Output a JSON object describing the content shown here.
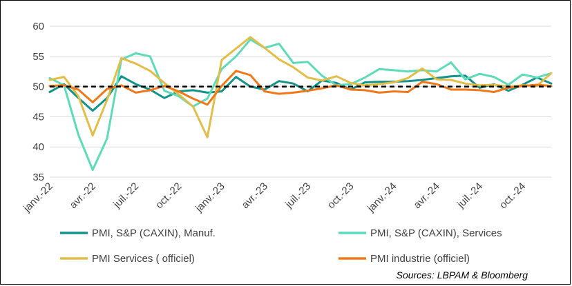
{
  "chart_data": {
    "type": "line",
    "title": "",
    "xlabel": "",
    "ylabel": "",
    "ylim": [
      35,
      60
    ],
    "yticks": [
      "60",
      "55",
      "50",
      "45",
      "40",
      "35"
    ],
    "grid": true,
    "x": [
      "janv.-22",
      "févr.-22",
      "mars-22",
      "avr.-22",
      "mai-22",
      "juin-22",
      "juil.-22",
      "août-22",
      "sept.-22",
      "oct.-22",
      "nov.-22",
      "déc.-22",
      "janv.-23",
      "févr.-23",
      "mars-23",
      "avr.-23",
      "mai-23",
      "juin-23",
      "juil.-23",
      "août-23",
      "sept.-23",
      "oct.-23",
      "nov.-23",
      "déc.-23",
      "janv.-24",
      "févr.-24",
      "mars-24",
      "avr.-24",
      "mai-24",
      "juin-24",
      "juil.-24",
      "août-24",
      "sept.-24",
      "oct.-24",
      "nov.-24",
      "déc.-24"
    ],
    "xtick_labels": [
      "janv.-22",
      "avr.-22",
      "juil.-22",
      "oct.-22",
      "janv.-23",
      "avr.-23",
      "juil.-23",
      "oct.-23",
      "janv.-24",
      "avr.-24",
      "juil.-24",
      "oct.-24"
    ],
    "reference_line": {
      "value": 50,
      "style": "dashed"
    },
    "series": [
      {
        "name": "PMI, S&P (CAXIN), Manuf.",
        "color": "#13938A",
        "values": [
          49.1,
          50.4,
          48.1,
          46.0,
          48.1,
          51.7,
          50.4,
          49.5,
          48.1,
          49.2,
          49.4,
          49.0,
          49.2,
          51.6,
          50.0,
          49.5,
          50.9,
          50.5,
          49.2,
          51.0,
          50.6,
          49.5,
          50.7,
          50.8,
          50.8,
          50.9,
          51.1,
          51.4,
          51.7,
          51.8,
          49.8,
          50.4,
          49.3,
          50.3,
          51.5,
          50.5
        ]
      },
      {
        "name": "PMI, S&P (CAXIN), Services",
        "color": "#5DDBB9",
        "values": [
          51.4,
          50.2,
          42.0,
          36.2,
          41.4,
          54.5,
          55.5,
          55.0,
          49.3,
          48.4,
          46.7,
          48.0,
          52.9,
          55.0,
          57.8,
          56.4,
          57.1,
          53.9,
          54.1,
          51.8,
          50.2,
          50.4,
          51.5,
          52.9,
          52.7,
          52.5,
          52.7,
          52.5,
          54.0,
          51.2,
          52.1,
          51.6,
          50.3,
          52.0,
          51.5,
          52.2
        ]
      },
      {
        "name": "PMI Services ( officiel)",
        "color": "#E2BE48",
        "values": [
          51.1,
          51.6,
          48.4,
          41.9,
          47.8,
          54.7,
          53.8,
          52.6,
          50.6,
          48.7,
          46.7,
          41.6,
          54.4,
          56.3,
          58.2,
          56.4,
          54.5,
          53.2,
          51.5,
          51.0,
          51.7,
          50.6,
          50.2,
          50.4,
          50.7,
          51.4,
          53.0,
          51.2,
          51.1,
          50.5,
          50.2,
          50.3,
          50.0,
          50.2,
          50.1,
          52.2
        ]
      },
      {
        "name": "PMI industrie (officiel)",
        "color": "#F07818",
        "values": [
          50.1,
          50.2,
          49.5,
          47.4,
          49.6,
          50.2,
          49.0,
          49.4,
          50.1,
          49.2,
          48.0,
          47.0,
          50.1,
          52.6,
          51.9,
          49.2,
          48.8,
          49.0,
          49.3,
          49.7,
          50.2,
          49.5,
          49.4,
          49.0,
          49.2,
          49.1,
          50.8,
          50.4,
          49.5,
          49.5,
          49.4,
          49.1,
          49.8,
          50.1,
          50.3,
          50.1
        ]
      }
    ],
    "source": "Sources: LBPAM & Bloomberg"
  }
}
